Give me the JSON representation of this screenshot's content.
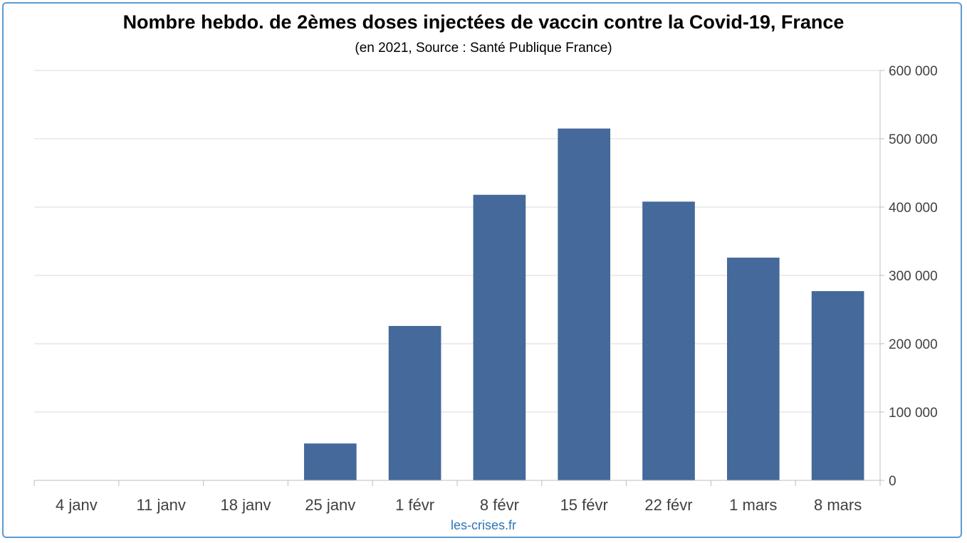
{
  "chart_data": {
    "type": "bar",
    "title": "Nombre hebdo. de 2èmes doses injectées de vaccin contre la Covid-19, France",
    "subtitle": "(en 2021, Source : Santé Publique France)",
    "source_label": "les-crises.fr",
    "categories": [
      "4 janv",
      "11 janv",
      "18 janv",
      "25 janv",
      "1 févr",
      "8 févr",
      "15 févr",
      "22 févr",
      "1 mars",
      "8 mars"
    ],
    "values": [
      0,
      0,
      0,
      54000,
      226000,
      418000,
      515000,
      408000,
      326000,
      277000
    ],
    "ylim": [
      0,
      600000
    ],
    "yticks": [
      0,
      100000,
      200000,
      300000,
      400000,
      500000,
      600000
    ],
    "ytick_labels": [
      "0",
      "100 000",
      "200 000",
      "300 000",
      "400 000",
      "500 000",
      "600 000"
    ],
    "y_axis_side": "right",
    "grid": true,
    "legend": "none",
    "bar_color": "#44699a",
    "frame_color": "#5b9bd5",
    "source_color": "#2e75b6"
  }
}
